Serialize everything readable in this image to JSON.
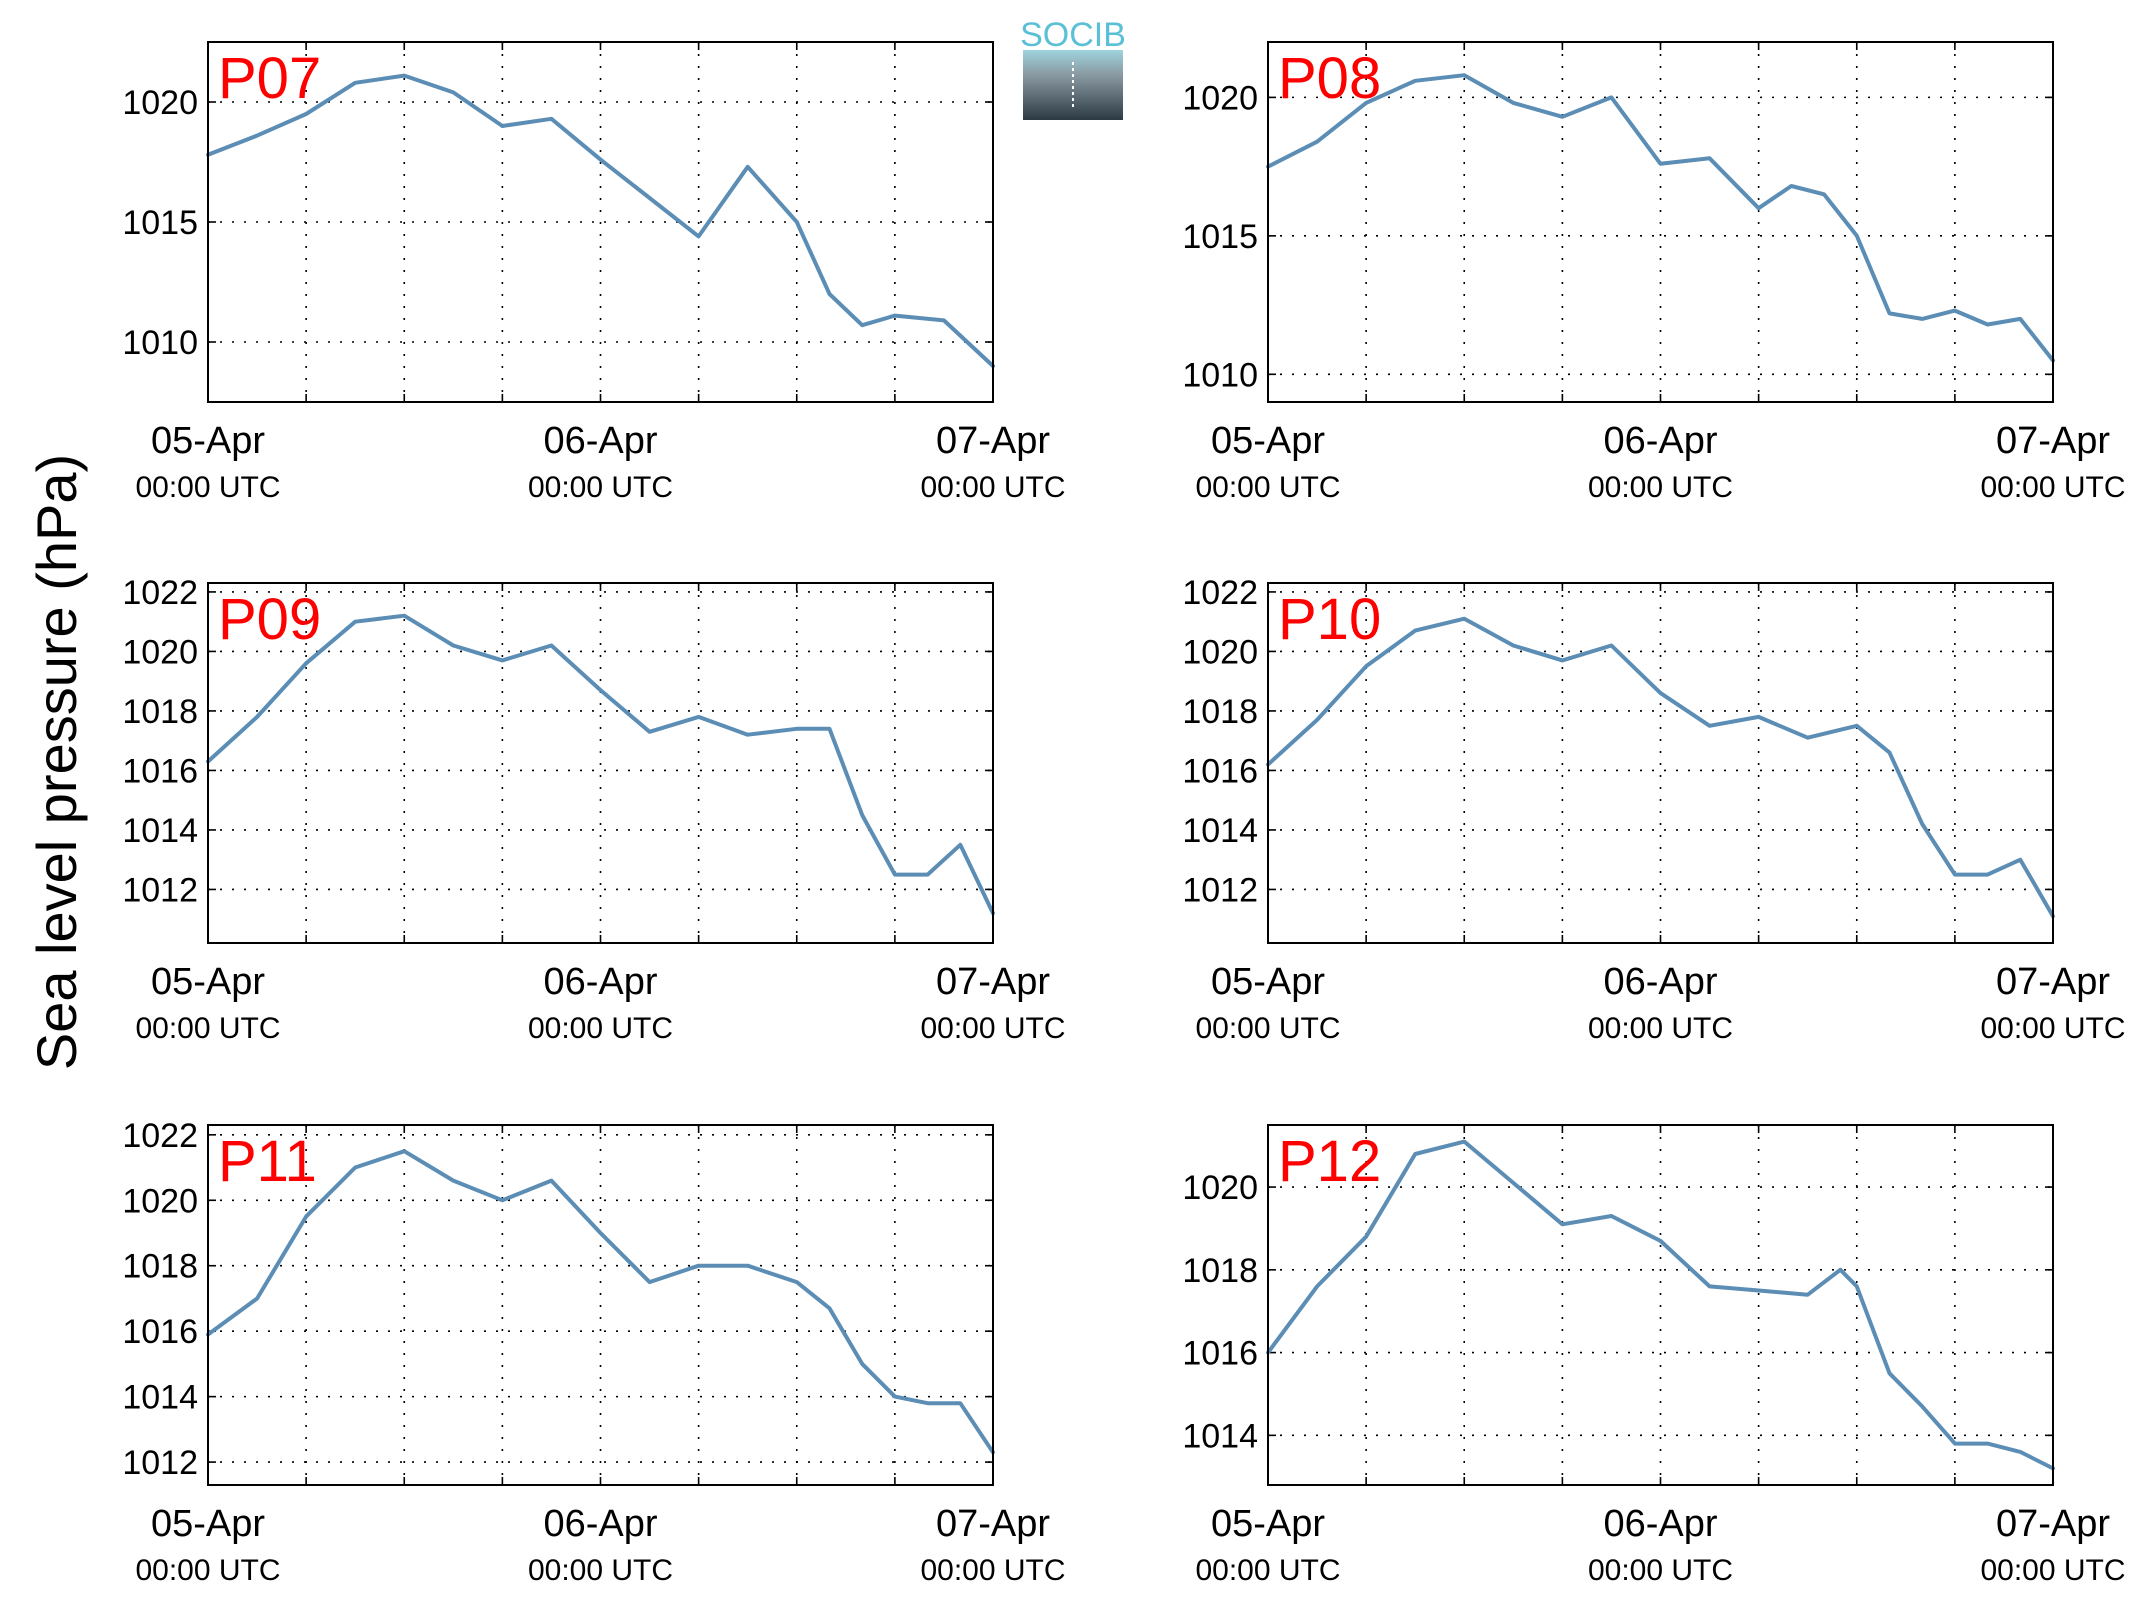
{
  "figure": {
    "ylabel": "Sea level pressure (hPa)",
    "logo_text": "SOCIB",
    "line_color": "#5b8db5",
    "label_color": "#ff0000",
    "logo_color": "#5bc0d6"
  },
  "chart_data": [
    {
      "type": "line",
      "label": "P07",
      "ylim": [
        1007.5,
        1022.5
      ],
      "yticks": [
        1010,
        1015,
        1020
      ],
      "xlim": [
        "2024-04-05T00:00",
        "2024-04-07T00:00"
      ],
      "xticks": [
        {
          "date": "05-Apr",
          "time": "00:00 UTC"
        },
        {
          "date": "06-Apr",
          "time": "00:00 UTC"
        },
        {
          "date": "07-Apr",
          "time": "00:00 UTC"
        }
      ],
      "grid": true,
      "x_hours": [
        0,
        3,
        6,
        9,
        12,
        15,
        18,
        21,
        24,
        27,
        30,
        33,
        36,
        38,
        40,
        42,
        45,
        48
      ],
      "y": [
        1017.8,
        1018.6,
        1019.5,
        1020.8,
        1021.1,
        1020.4,
        1019.0,
        1019.3,
        1017.6,
        1016.0,
        1014.4,
        1017.3,
        1015.0,
        1012.0,
        1010.7,
        1011.1,
        1010.9,
        1009.0
      ]
    },
    {
      "type": "line",
      "label": "P08",
      "ylim": [
        1009.0,
        1022.0
      ],
      "yticks": [
        1010,
        1015,
        1020
      ],
      "xlim": [
        "2024-04-05T00:00",
        "2024-04-07T00:00"
      ],
      "xticks": [
        {
          "date": "05-Apr",
          "time": "00:00 UTC"
        },
        {
          "date": "06-Apr",
          "time": "00:00 UTC"
        },
        {
          "date": "07-Apr",
          "time": "00:00 UTC"
        }
      ],
      "grid": true,
      "x_hours": [
        0,
        3,
        6,
        9,
        12,
        15,
        18,
        21,
        24,
        27,
        30,
        32,
        34,
        36,
        38,
        40,
        42,
        44,
        46,
        48
      ],
      "y": [
        1017.5,
        1018.4,
        1019.8,
        1020.6,
        1020.8,
        1019.8,
        1019.3,
        1020.0,
        1017.6,
        1017.8,
        1016.0,
        1016.8,
        1016.5,
        1015.0,
        1012.2,
        1012.0,
        1012.3,
        1011.8,
        1012.0,
        1010.5
      ]
    },
    {
      "type": "line",
      "label": "P09",
      "ylim": [
        1010.2,
        1022.3
      ],
      "yticks": [
        1012,
        1014,
        1016,
        1018,
        1020,
        1022
      ],
      "xlim": [
        "2024-04-05T00:00",
        "2024-04-07T00:00"
      ],
      "xticks": [
        {
          "date": "05-Apr",
          "time": "00:00 UTC"
        },
        {
          "date": "06-Apr",
          "time": "00:00 UTC"
        },
        {
          "date": "07-Apr",
          "time": "00:00 UTC"
        }
      ],
      "grid": true,
      "x_hours": [
        0,
        3,
        6,
        9,
        12,
        15,
        18,
        21,
        24,
        27,
        30,
        33,
        36,
        38,
        40,
        42,
        44,
        46,
        48
      ],
      "y": [
        1016.3,
        1017.8,
        1019.6,
        1021.0,
        1021.2,
        1020.2,
        1019.7,
        1020.2,
        1018.7,
        1017.3,
        1017.8,
        1017.2,
        1017.4,
        1017.4,
        1014.5,
        1012.5,
        1012.5,
        1013.5,
        1011.2
      ]
    },
    {
      "type": "line",
      "label": "P10",
      "ylim": [
        1010.2,
        1022.3
      ],
      "yticks": [
        1012,
        1014,
        1016,
        1018,
        1020,
        1022
      ],
      "xlim": [
        "2024-04-05T00:00",
        "2024-04-07T00:00"
      ],
      "xticks": [
        {
          "date": "05-Apr",
          "time": "00:00 UTC"
        },
        {
          "date": "06-Apr",
          "time": "00:00 UTC"
        },
        {
          "date": "07-Apr",
          "time": "00:00 UTC"
        }
      ],
      "grid": true,
      "x_hours": [
        0,
        3,
        6,
        9,
        12,
        15,
        18,
        21,
        24,
        27,
        30,
        33,
        36,
        38,
        40,
        42,
        44,
        46,
        48
      ],
      "y": [
        1016.2,
        1017.7,
        1019.5,
        1020.7,
        1021.1,
        1020.2,
        1019.7,
        1020.2,
        1018.6,
        1017.5,
        1017.8,
        1017.1,
        1017.5,
        1016.6,
        1014.2,
        1012.5,
        1012.5,
        1013.0,
        1011.1
      ]
    },
    {
      "type": "line",
      "label": "P11",
      "ylim": [
        1011.3,
        1022.3
      ],
      "yticks": [
        1012,
        1014,
        1016,
        1018,
        1020,
        1022
      ],
      "xlim": [
        "2024-04-05T00:00",
        "2024-04-07T00:00"
      ],
      "xticks": [
        {
          "date": "05-Apr",
          "time": "00:00 UTC"
        },
        {
          "date": "06-Apr",
          "time": "00:00 UTC"
        },
        {
          "date": "07-Apr",
          "time": "00:00 UTC"
        }
      ],
      "grid": true,
      "x_hours": [
        0,
        3,
        6,
        9,
        12,
        15,
        18,
        21,
        24,
        27,
        30,
        33,
        36,
        38,
        40,
        42,
        44,
        46,
        48
      ],
      "y": [
        1015.9,
        1017.0,
        1019.5,
        1021.0,
        1021.5,
        1020.6,
        1020.0,
        1020.6,
        1019.0,
        1017.5,
        1018.0,
        1018.0,
        1017.5,
        1016.7,
        1015.0,
        1014.0,
        1013.8,
        1013.8,
        1012.3
      ]
    },
    {
      "type": "line",
      "label": "P12",
      "ylim": [
        1012.8,
        1021.5
      ],
      "yticks": [
        1014,
        1016,
        1018,
        1020
      ],
      "xlim": [
        "2024-04-05T00:00",
        "2024-04-07T00:00"
      ],
      "xticks": [
        {
          "date": "05-Apr",
          "time": "00:00 UTC"
        },
        {
          "date": "06-Apr",
          "time": "00:00 UTC"
        },
        {
          "date": "07-Apr",
          "time": "00:00 UTC"
        }
      ],
      "grid": true,
      "x_hours": [
        0,
        3,
        6,
        9,
        12,
        15,
        18,
        21,
        24,
        27,
        30,
        33,
        35,
        36,
        38,
        40,
        42,
        44,
        46,
        48
      ],
      "y": [
        1016.0,
        1017.6,
        1018.8,
        1020.8,
        1021.1,
        1020.1,
        1019.1,
        1019.3,
        1018.7,
        1017.6,
        1017.5,
        1017.4,
        1018.0,
        1017.6,
        1015.5,
        1014.7,
        1013.8,
        1013.8,
        1013.6,
        1013.2
      ]
    }
  ]
}
